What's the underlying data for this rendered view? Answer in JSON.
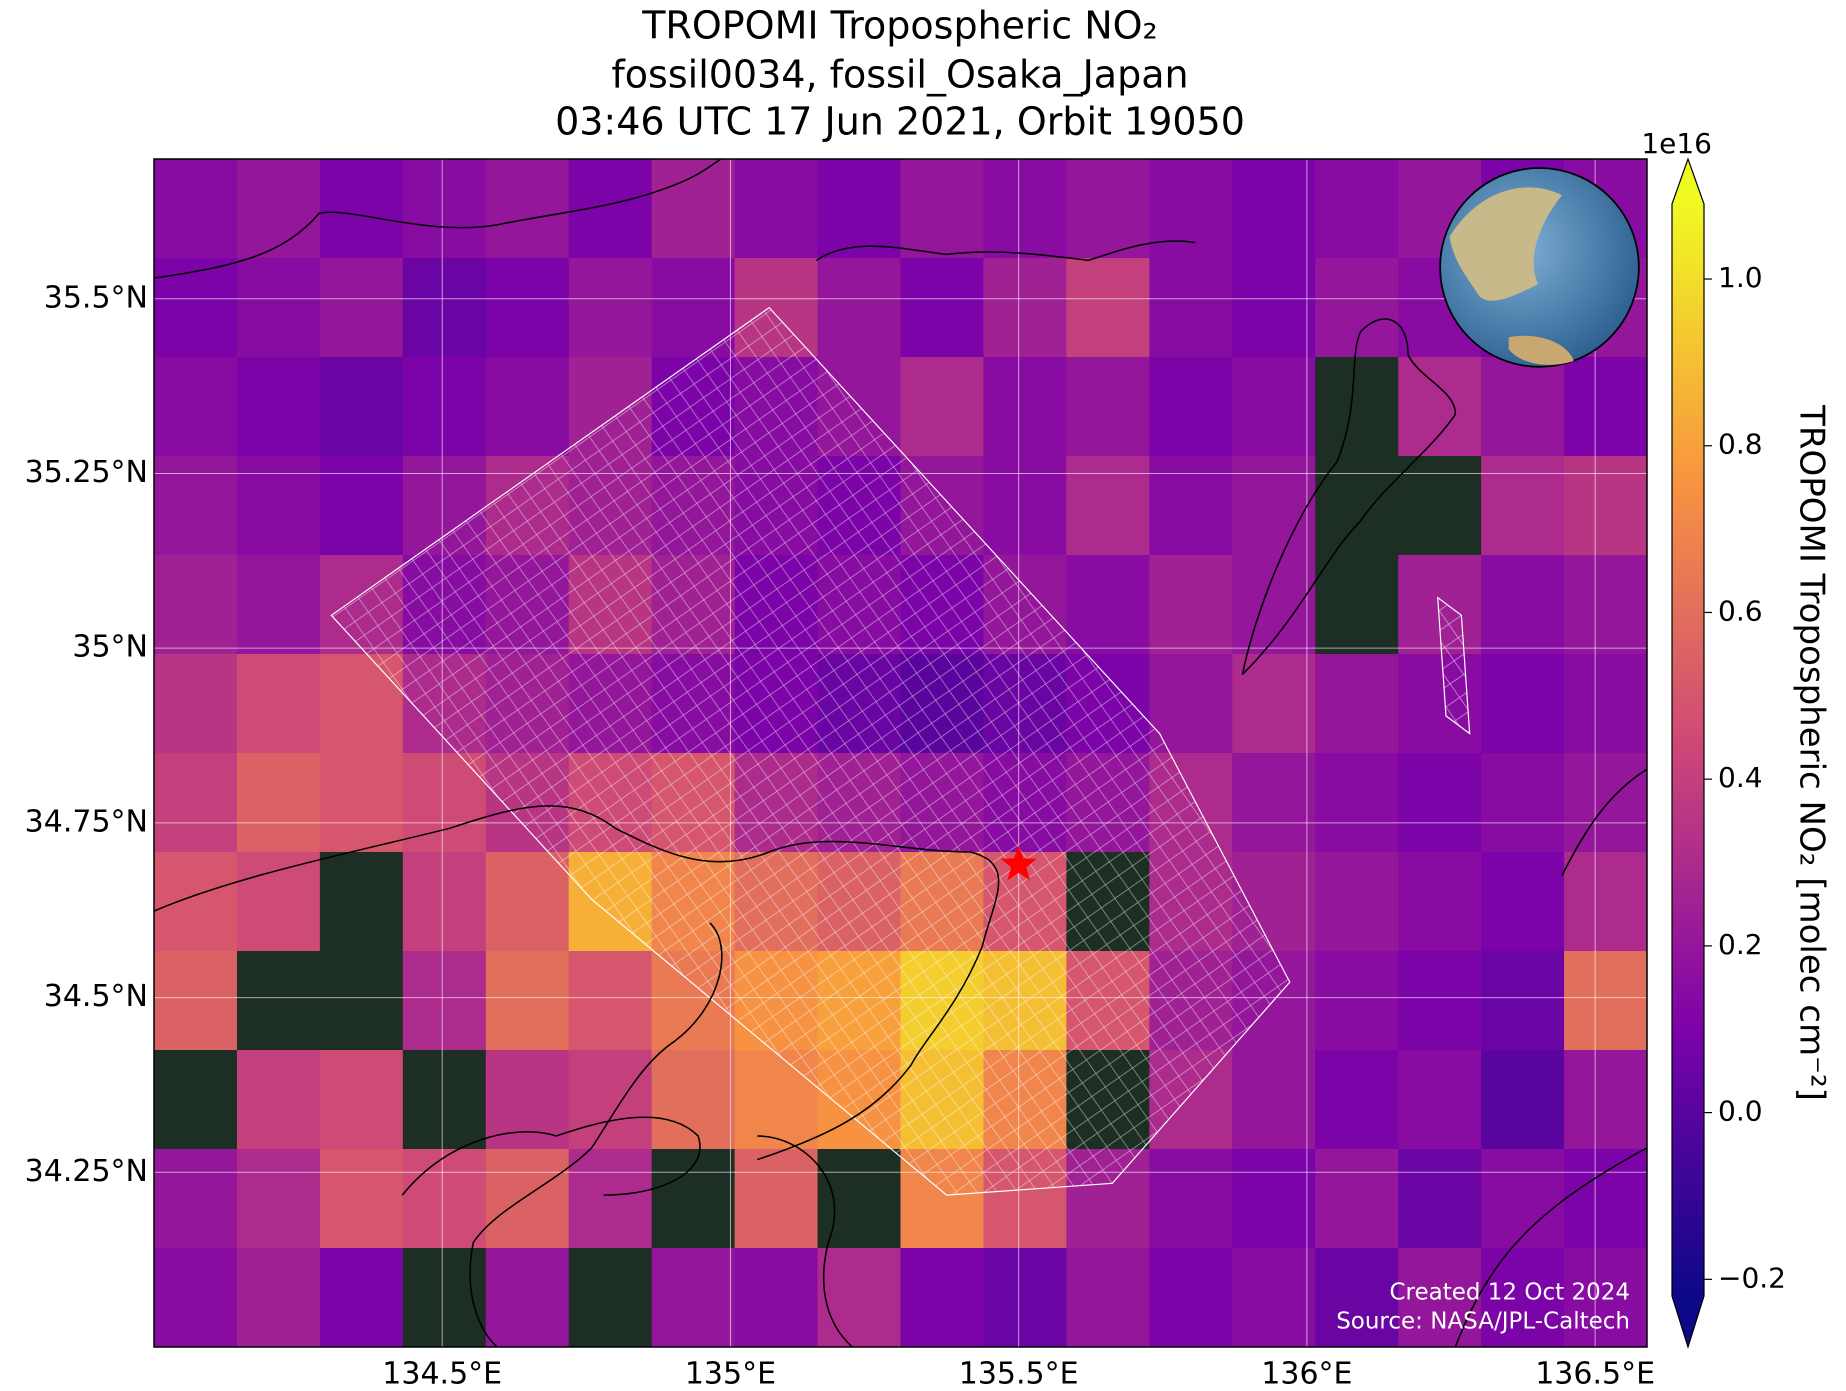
{
  "chart_data": {
    "type": "heatmap",
    "title": [
      "TROPOMI Tropospheric NO₂",
      "fossil0034, fossil_Osaka_Japan",
      "03:46 UTC 17 Jun 2021, Orbit 19050"
    ],
    "xlim": [
      134.0,
      136.59
    ],
    "ylim": [
      34.0,
      35.7
    ],
    "xticks": [
      {
        "value": 134.5,
        "label": "134.5°E"
      },
      {
        "value": 135,
        "label": "135°E"
      },
      {
        "value": 135.5,
        "label": "135.5°E"
      },
      {
        "value": 136,
        "label": "136°E"
      },
      {
        "value": 136.5,
        "label": "136.5°E"
      }
    ],
    "yticks": [
      {
        "value": 34.25,
        "label": "34.25°N"
      },
      {
        "value": 34.5,
        "label": "34.5°N"
      },
      {
        "value": 34.75,
        "label": "34.75°N"
      },
      {
        "value": 35,
        "label": "35°N"
      },
      {
        "value": 35.25,
        "label": "35.25°N"
      },
      {
        "value": 35.5,
        "label": "35.5°N"
      }
    ],
    "grid": true,
    "colormap_colors": [
      "#0d0887",
      "#7e03a8",
      "#cc4778",
      "#f89540",
      "#f0f921"
    ],
    "clim": [
      -0.22,
      1.09
    ],
    "colorbar_ticks": [
      {
        "value": -0.2,
        "label": "−0.2"
      },
      {
        "value": 0,
        "label": "0.0"
      },
      0.2,
      0.4,
      0.6,
      0.8,
      {
        "value": 1,
        "label": "1.0"
      }
    ],
    "colorbar_offset": "1e16",
    "colorbar_label": "TROPOMI Tropospheric NO₂ [molec cm⁻²]",
    "marker": {
      "lon": 135.5,
      "lat": 34.69,
      "color": "#ff0000"
    },
    "annotations": [
      "Created 12 Oct 2024",
      "Source: NASA/JPL-Caltech"
    ],
    "values": [
      [
        0.15,
        0.2,
        0.1,
        0.15,
        0.2,
        0.1,
        0.25,
        0.15,
        0.1,
        0.2,
        0.15,
        0.2,
        0.15,
        0.1,
        0.15,
        0.2,
        0.1,
        0.15
      ],
      [
        0.1,
        0.15,
        0.2,
        0.05,
        0.1,
        0.2,
        0.15,
        0.35,
        0.2,
        0.1,
        0.25,
        0.4,
        0.15,
        0.1,
        0.2,
        0.15,
        0.1,
        0.2
      ],
      [
        0.15,
        0.1,
        0.05,
        0.1,
        0.15,
        0.25,
        0.1,
        0.15,
        0.2,
        0.3,
        0.15,
        0.2,
        0.1,
        0.15,
        null,
        0.3,
        0.2,
        0.1
      ],
      [
        0.2,
        0.15,
        0.1,
        0.2,
        0.3,
        0.25,
        0.2,
        0.15,
        0.1,
        0.2,
        0.15,
        0.3,
        0.15,
        0.2,
        null,
        null,
        0.3,
        0.35
      ],
      [
        0.25,
        0.2,
        0.3,
        0.15,
        0.2,
        0.35,
        0.25,
        0.1,
        0.15,
        0.1,
        0.2,
        0.15,
        0.25,
        0.2,
        null,
        0.25,
        0.15,
        0.2
      ],
      [
        0.35,
        0.45,
        0.5,
        0.3,
        0.25,
        0.2,
        0.15,
        0.1,
        0.05,
        0.0,
        0.05,
        0.1,
        0.2,
        0.3,
        0.2,
        0.15,
        0.1,
        0.15
      ],
      [
        0.4,
        0.55,
        0.5,
        0.45,
        0.35,
        0.45,
        0.5,
        0.3,
        0.25,
        0.2,
        0.15,
        0.2,
        0.3,
        0.2,
        0.15,
        0.1,
        0.15,
        0.2
      ],
      [
        0.5,
        0.45,
        null,
        0.4,
        0.55,
        0.85,
        0.7,
        0.6,
        0.55,
        0.65,
        0.5,
        null,
        0.3,
        0.25,
        0.2,
        0.15,
        0.1,
        0.3
      ],
      [
        0.55,
        null,
        null,
        0.3,
        0.6,
        0.5,
        0.65,
        0.75,
        0.8,
        0.95,
        0.9,
        0.5,
        0.25,
        0.2,
        0.15,
        0.1,
        0.05,
        0.6
      ],
      [
        null,
        0.4,
        0.45,
        null,
        0.35,
        0.4,
        0.6,
        0.7,
        0.75,
        0.9,
        0.7,
        null,
        0.3,
        0.2,
        0.1,
        0.15,
        0.0,
        0.2
      ],
      [
        0.2,
        0.3,
        0.5,
        0.45,
        0.55,
        0.3,
        null,
        0.55,
        null,
        0.7,
        0.5,
        0.25,
        0.15,
        0.1,
        0.2,
        0.05,
        0.15,
        0.1
      ],
      [
        0.15,
        0.25,
        0.1,
        null,
        0.2,
        null,
        0.2,
        0.15,
        0.3,
        0.1,
        0.05,
        0.2,
        0.1,
        0.15,
        0.05,
        0.2,
        0.1,
        0.15
      ]
    ]
  }
}
